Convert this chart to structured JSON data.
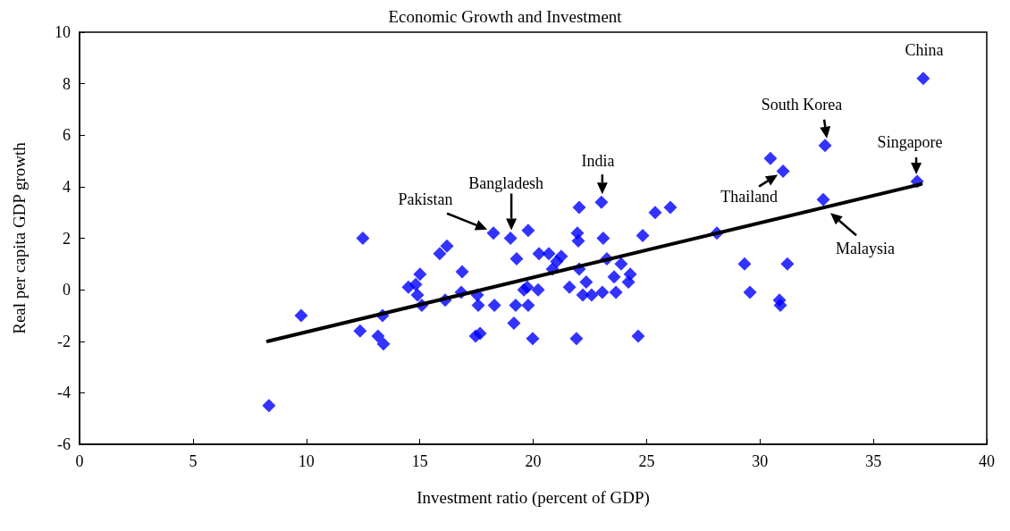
{
  "chart_data": {
    "type": "scatter",
    "title": "Economic Growth and Investment",
    "xlabel": "Investment ratio (percent of GDP)",
    "ylabel": "Real per capita GDP growth",
    "xlim": [
      0,
      40
    ],
    "xticks": [
      0,
      5,
      10,
      15,
      20,
      25,
      30,
      35,
      40
    ],
    "ylim": [
      -6,
      10
    ],
    "yticks": [
      -6,
      -4,
      -2,
      0,
      2,
      4,
      6,
      8,
      10
    ],
    "grid": false,
    "series": [
      {
        "marker": "diamond",
        "color": "#0000ff",
        "x": [
          8.35,
          9.77,
          12.37,
          12.49,
          13.16,
          13.4,
          13.36,
          14.5,
          14.82,
          14.9,
          15.01,
          15.09,
          15.88,
          16.2,
          16.12,
          16.87,
          16.83,
          17.54,
          17.58,
          17.46,
          17.66,
          18.25,
          18.29,
          19.0,
          19.27,
          19.78,
          19.23,
          19.78,
          19.15,
          19.59,
          19.74,
          19.98,
          20.22,
          20.26,
          20.69,
          21.24,
          21.04,
          20.85,
          21.6,
          21.91,
          22.03,
          21.95,
          21.99,
          22.03,
          22.34,
          22.19,
          22.58,
          23.01,
          23.09,
          23.05,
          23.25,
          23.57,
          23.65,
          23.88,
          24.28,
          24.2,
          24.63,
          24.83,
          25.38,
          26.05,
          28.1,
          29.32,
          29.56,
          30.46,
          31.02,
          31.21,
          30.86,
          30.9,
          32.87,
          32.79,
          36.93,
          37.2
        ],
        "values": [
          -4.5,
          -1.0,
          -1.6,
          2.0,
          -1.8,
          -2.1,
          -1.0,
          0.1,
          0.2,
          -0.2,
          0.6,
          -0.6,
          1.4,
          1.7,
          -0.4,
          0.7,
          -0.1,
          -0.2,
          -0.6,
          -1.8,
          -1.7,
          2.2,
          -0.6,
          2.0,
          1.2,
          2.3,
          -0.6,
          -0.6,
          -1.3,
          0.0,
          0.1,
          -1.9,
          0.0,
          1.4,
          1.4,
          1.3,
          1.1,
          0.8,
          0.1,
          -1.9,
          3.2,
          2.2,
          1.9,
          0.8,
          0.3,
          -0.2,
          -0.2,
          3.4,
          2.0,
          -0.1,
          1.2,
          0.5,
          -0.1,
          1.0,
          0.6,
          0.3,
          -1.8,
          2.1,
          3.0,
          3.2,
          2.2,
          1.0,
          -0.1,
          5.1,
          4.6,
          1.0,
          -0.4,
          -0.6,
          5.6,
          3.5,
          4.2,
          8.2
        ]
      },
      {
        "type": "line",
        "marker": "none",
        "line_style": "solid",
        "color": "#000000",
        "x": [
          8.3,
          37.1
        ],
        "values": [
          -2.0,
          4.1
        ]
      }
    ],
    "annotations": [
      {
        "text": "Pakistan",
        "x": 18.25,
        "y": 2.2
      },
      {
        "text": "Bangladesh",
        "x": 19.0,
        "y": 2.0
      },
      {
        "text": "India",
        "x": 23.01,
        "y": 3.4
      },
      {
        "text": "South Korea",
        "x": 32.87,
        "y": 5.6
      },
      {
        "text": "Singapore",
        "x": 36.93,
        "y": 4.2
      },
      {
        "text": "China",
        "x": 37.2,
        "y": 8.2
      },
      {
        "text": "Thailand",
        "x": 31.02,
        "y": 4.6
      },
      {
        "text": "Malaysia",
        "x": 32.79,
        "y": 3.5
      }
    ]
  }
}
